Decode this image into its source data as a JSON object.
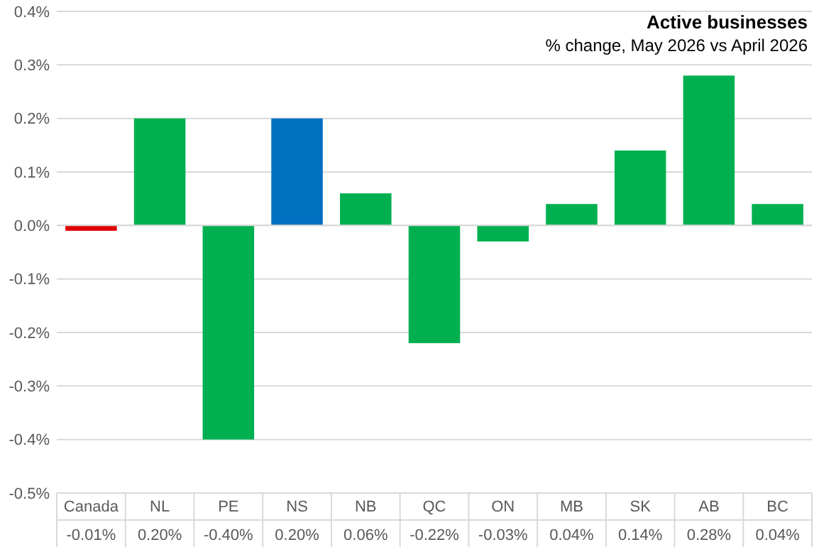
{
  "chart_data": {
    "type": "bar",
    "title": "Active businesses",
    "subtitle": "% change, May 2026 vs April 2026",
    "categories": [
      "Canada",
      "NL",
      "PE",
      "NS",
      "NB",
      "QC",
      "ON",
      "MB",
      "SK",
      "AB",
      "BC"
    ],
    "values": [
      -0.01,
      0.2,
      -0.4,
      0.2,
      0.06,
      -0.22,
      -0.03,
      0.04,
      0.14,
      0.28,
      0.04
    ],
    "colors": [
      "#e00000",
      "#00b050",
      "#00b050",
      "#0070c0",
      "#00b050",
      "#00b050",
      "#00b050",
      "#00b050",
      "#00b050",
      "#00b050",
      "#00b050"
    ],
    "value_labels": [
      "-0.01%",
      "0.20%",
      "-0.40%",
      "0.20%",
      "0.06%",
      "-0.22%",
      "-0.03%",
      "0.04%",
      "0.14%",
      "0.28%",
      "0.04%"
    ],
    "ylim": [
      -0.5,
      0.4
    ],
    "yticks": [
      {
        "value": -0.5,
        "label": "-0.5%"
      },
      {
        "value": -0.4,
        "label": "-0.4%"
      },
      {
        "value": -0.3,
        "label": "-0.3%"
      },
      {
        "value": -0.2,
        "label": "-0.2%"
      },
      {
        "value": -0.1,
        "label": "-0.1%"
      },
      {
        "value": 0,
        "label": "0.0%"
      },
      {
        "value": 0.1,
        "label": "0.1%"
      },
      {
        "value": 0.2,
        "label": "0.2%"
      },
      {
        "value": 0.3,
        "label": "0.3%"
      },
      {
        "value": 0.4,
        "label": "0.4%"
      }
    ],
    "grid": "y"
  }
}
